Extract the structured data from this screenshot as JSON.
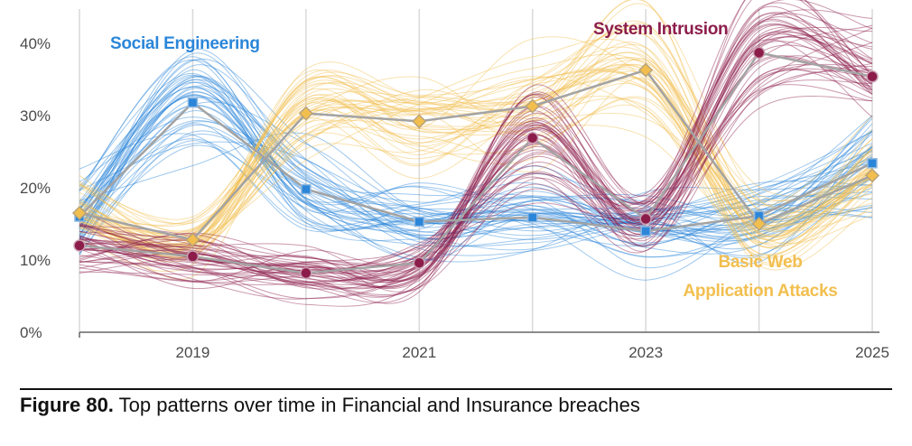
{
  "chart_data": {
    "type": "line",
    "x": [
      2018,
      2019,
      2020,
      2021,
      2022,
      2023,
      2024,
      2025
    ],
    "x_ticks": [
      2019,
      2021,
      2023,
      2025
    ],
    "x_tick_labels": [
      "2019",
      "2021",
      "2023",
      "2025"
    ],
    "y_ticks": [
      0,
      10,
      20,
      30,
      40
    ],
    "y_tick_labels": [
      "0%",
      "10%",
      "20%",
      "30%",
      "40%"
    ],
    "ylim": [
      0,
      44
    ],
    "xlim": [
      2018,
      2025
    ],
    "grid": "vertical",
    "series": [
      {
        "name": "Social Engineering",
        "color": "#2b86d9",
        "marker": "square",
        "values": [
          16,
          31.8,
          19.8,
          15.3,
          15.9,
          14,
          16.1,
          23.4
        ]
      },
      {
        "name": "Basic Web Application Attacks",
        "color": "#f2bf4f",
        "marker": "diamond",
        "values": [
          16.5,
          12.8,
          30.3,
          29.2,
          31.3,
          36.3,
          15,
          21.7
        ]
      },
      {
        "name": "System Intrusion",
        "color": "#8c1d4b",
        "marker": "circle",
        "values": [
          12,
          10.5,
          8.2,
          9.6,
          26.9,
          15.7,
          38.7,
          35.4
        ]
      }
    ],
    "labels": {
      "social_engineering": "Social Engineering",
      "system_intrusion": "System Intrusion",
      "basic_web_line1": "Basic Web",
      "basic_web_line2": "Application Attacks"
    }
  },
  "caption": {
    "figure_number": "Figure 80.",
    "text": " Top patterns over time in Financial and Insurance breaches"
  },
  "colors": {
    "mean_line": "#a3a3a3",
    "grid": "#d9d9d9",
    "axis": "#666666"
  }
}
